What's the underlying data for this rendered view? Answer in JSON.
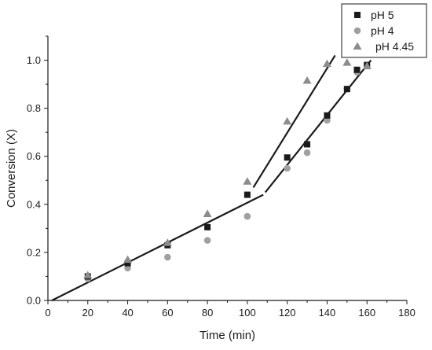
{
  "chart_data": {
    "type": "scatter",
    "xlabel": "Time (min)",
    "ylabel": "Conversion (X)",
    "xlim": [
      0,
      180
    ],
    "ylim": [
      0,
      1.1
    ],
    "xticks": [
      0,
      20,
      40,
      60,
      80,
      100,
      120,
      140,
      160,
      180
    ],
    "xtick_labels": [
      "0",
      "20",
      "40",
      "60",
      "80",
      "100",
      "120",
      "140",
      "160",
      "180"
    ],
    "yticks": [
      0,
      0.2,
      0.4,
      0.6,
      0.8,
      1.0
    ],
    "ytick_labels": [
      "0.0",
      "0.2",
      "0.4",
      "0.6",
      "0.8",
      "1.0"
    ],
    "grid": false,
    "legend_position": "top-right",
    "series": [
      {
        "name": "pH 5",
        "marker": "square",
        "color": "#1a1a1a",
        "points": [
          [
            20,
            0.1
          ],
          [
            40,
            0.155
          ],
          [
            60,
            0.23
          ],
          [
            80,
            0.305
          ],
          [
            100,
            0.44
          ],
          [
            120,
            0.595
          ],
          [
            130,
            0.65
          ],
          [
            140,
            0.77
          ],
          [
            150,
            0.88
          ],
          [
            155,
            0.96
          ],
          [
            160,
            0.98
          ]
        ]
      },
      {
        "name": "pH 4",
        "marker": "circle",
        "color": "#a0a0a0",
        "points": [
          [
            20,
            0.09
          ],
          [
            40,
            0.135
          ],
          [
            60,
            0.18
          ],
          [
            80,
            0.25
          ],
          [
            100,
            0.35
          ],
          [
            120,
            0.55
          ],
          [
            130,
            0.615
          ],
          [
            140,
            0.75
          ],
          [
            150,
            0.88
          ],
          [
            155,
            0.95
          ],
          [
            160,
            0.98
          ]
        ]
      },
      {
        "name": "pH 4.45",
        "marker": "triangle",
        "color": "#8c8c8c",
        "points": [
          [
            20,
            0.105
          ],
          [
            40,
            0.17
          ],
          [
            60,
            0.24
          ],
          [
            80,
            0.36
          ],
          [
            100,
            0.495
          ],
          [
            120,
            0.745
          ],
          [
            130,
            0.915
          ],
          [
            140,
            0.985
          ],
          [
            150,
            0.99
          ],
          [
            160,
            0.975
          ]
        ]
      }
    ],
    "trend_lines": [
      {
        "points": [
          [
            2,
            0.0
          ],
          [
            108,
            0.44
          ]
        ],
        "color": "#1a1a1a"
      },
      {
        "points": [
          [
            103,
            0.47
          ],
          [
            144,
            1.02
          ]
        ],
        "color": "#1a1a1a"
      },
      {
        "points": [
          [
            109,
            0.45
          ],
          [
            162,
            1.0
          ]
        ],
        "color": "#1a1a1a"
      }
    ]
  }
}
